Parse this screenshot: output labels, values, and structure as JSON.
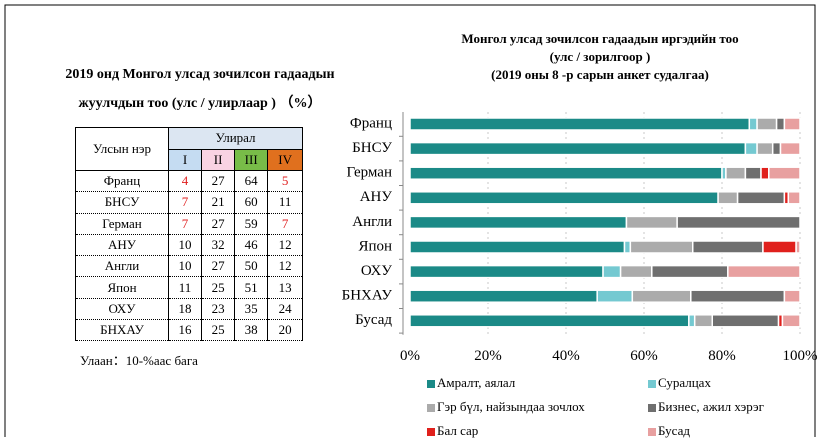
{
  "title_left": [
    "2019 онд Монгол улсад зочилсон гадаадын",
    "жуулчдын тоо (улс / улирлаар ) （%）"
  ],
  "table": {
    "name_header": "Улсын нэр",
    "season_header": "Улирал",
    "quarters": [
      {
        "label": "I",
        "color": "#c5dcf2"
      },
      {
        "label": "II",
        "color": "#f9d3e3"
      },
      {
        "label": "III",
        "color": "#78bc48"
      },
      {
        "label": "IV",
        "color": "#e0701e"
      }
    ],
    "highlight_color": "#e02020",
    "rows": [
      {
        "name": "Франц",
        "values": [
          4,
          27,
          64,
          5
        ],
        "highlight": [
          0,
          3
        ]
      },
      {
        "name": "БНСУ",
        "values": [
          7,
          21,
          60,
          11
        ],
        "highlight": [
          0
        ]
      },
      {
        "name": "Герман",
        "values": [
          7,
          27,
          59,
          7
        ],
        "highlight": [
          0,
          3
        ]
      },
      {
        "name": "АНУ",
        "values": [
          10,
          32,
          46,
          12
        ],
        "highlight": []
      },
      {
        "name": "Англи",
        "values": [
          10,
          27,
          50,
          12
        ],
        "highlight": []
      },
      {
        "name": "Япон",
        "values": [
          11,
          25,
          51,
          13
        ],
        "highlight": []
      },
      {
        "name": "ОХУ",
        "values": [
          18,
          23,
          35,
          24
        ],
        "highlight": []
      },
      {
        "name": "БНХАУ",
        "values": [
          16,
          25,
          38,
          20
        ],
        "highlight": []
      }
    ]
  },
  "note": "Улаан：10-%аас бага",
  "chart_data": {
    "type": "bar",
    "orientation": "horizontal",
    "stacked": true,
    "title": [
      "Монгол улсад зочилсон гадаадын иргэдийн тоо",
      "(улс / зорилгоор )",
      "(2019 оны 8 -р сарын анкет судалгаа)"
    ],
    "categories": [
      "Франц",
      "БНСУ",
      "Герман",
      "АНУ",
      "Англи",
      "Япон",
      "ОХУ",
      "БНХАУ",
      "Бусад"
    ],
    "series": [
      {
        "name": "Амралт, аялал",
        "color": "#1b8a87",
        "values": [
          87,
          86,
          80,
          79,
          55.5,
          55,
          49.5,
          48,
          71.5
        ]
      },
      {
        "name": "Суралцах",
        "color": "#74c9d1",
        "values": [
          2,
          3,
          1,
          0,
          0,
          1.5,
          4.5,
          9,
          1.5
        ]
      },
      {
        "name": "Гэр бүл, найзындаа зочлох",
        "color": "#ababab",
        "values": [
          5,
          4,
          5,
          5,
          13,
          16,
          8,
          15,
          4.5
        ]
      },
      {
        "name": "Бизнес, ажил хэрэг",
        "color": "#6f6f6f",
        "values": [
          2,
          2,
          4,
          12,
          31.5,
          18,
          19.5,
          24,
          17
        ]
      },
      {
        "name": "Бал сар",
        "color": "#e0201c",
        "values": [
          0,
          0,
          2,
          1,
          0,
          8.5,
          0,
          0,
          1
        ]
      },
      {
        "name": "Бусад",
        "color": "#e8a0a0",
        "values": [
          4,
          5,
          8,
          3,
          0,
          1,
          18.5,
          4,
          4.5
        ]
      }
    ],
    "xlim": [
      0,
      100
    ],
    "xticks": [
      {
        "value": 0,
        "label": "0%"
      },
      {
        "value": 20,
        "label": "20%"
      },
      {
        "value": 40,
        "label": "40%"
      },
      {
        "value": 60,
        "label": "60%"
      },
      {
        "value": 80,
        "label": "80%"
      },
      {
        "value": 100,
        "label": "100%"
      }
    ],
    "grid": true,
    "legend": "bottom"
  }
}
